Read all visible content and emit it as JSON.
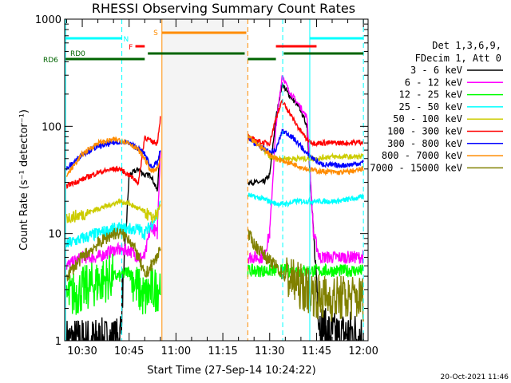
{
  "chart_data": {
    "type": "line",
    "title": "RHESSI Observing Summary Count Rates",
    "xlabel": "Start Time (27-Sep-14 10:24:22)",
    "ylabel": "Count Rate (s⁻¹ detector⁻¹)",
    "yscale": "log",
    "xlim": [
      "10:24:22",
      "12:01:30"
    ],
    "ylim": [
      1,
      1000
    ],
    "x_ticks": [
      "10:30",
      "10:45",
      "11:00",
      "11:15",
      "11:30",
      "11:45",
      "12:00"
    ],
    "y_ticks": [
      "1",
      "10",
      "100",
      "1000"
    ],
    "legend_title": [
      "Det 1,3,6,9,",
      "FDecim 1, Att 0"
    ],
    "legend_position": "right",
    "timestamp": "20-Oct-2021 11:46",
    "flag_labels": {
      "N": "N",
      "F": "F",
      "S": "S",
      "RD0": "RD0",
      "RD6": "RD6"
    },
    "colors": {
      "saa": "#ff8c00",
      "night": "#00ffff",
      "flare": "#ff0000",
      "decim": "#006400"
    },
    "gaps": [
      [
        "10:55:30",
        "11:23:00"
      ]
    ],
    "markers": [
      {
        "time": "10:24:40",
        "color": "#00ffff",
        "style": "solid"
      },
      {
        "time": "10:42:40",
        "color": "#00ffff",
        "style": "dashed"
      },
      {
        "time": "10:55:30",
        "color": "#ff8c00",
        "style": "solid"
      },
      {
        "time": "11:23:00",
        "color": "#ff8c00",
        "style": "dashed"
      },
      {
        "time": "11:34:10",
        "color": "#00ffff",
        "style": "dashed"
      },
      {
        "time": "11:42:50",
        "color": "#00ffff",
        "style": "solid"
      },
      {
        "time": "12:00:00",
        "color": "#00ffff",
        "style": "dashed"
      }
    ],
    "flag_bars": [
      {
        "label": "N",
        "color": "#00ffff",
        "segments": [
          [
            "10:24:40",
            "10:42:40"
          ],
          [
            "11:42:50",
            "12:00:00"
          ]
        ]
      },
      {
        "label": "F",
        "color": "#ff0000",
        "segments": [
          [
            "10:47:00",
            "10:50:00"
          ],
          [
            "11:32:00",
            "11:45:00"
          ]
        ]
      },
      {
        "label": "S",
        "color": "#ff8c00",
        "segments": [
          [
            "10:55:30",
            "11:22:30"
          ]
        ]
      },
      {
        "label": "RD0",
        "color": "#006400",
        "segments": [
          [
            "10:51:00",
            "11:22:00"
          ],
          [
            "11:34:30",
            "12:00:00"
          ]
        ]
      },
      {
        "label": "RD6",
        "color": "#006400",
        "segments": [
          [
            "10:24:40",
            "10:50:00"
          ],
          [
            "11:23:00",
            "11:32:00"
          ]
        ]
      }
    ],
    "series": [
      {
        "name": "3 - 6 keV",
        "color": "#000000",
        "x": [
          "10:25",
          "10:30",
          "10:35",
          "10:40",
          "10:42",
          "10:45",
          "10:48",
          "10:50",
          "10:52",
          "10:54",
          "10:55",
          "11:23",
          "11:25",
          "11:28",
          "11:30",
          "11:32",
          "11:34",
          "11:36",
          "11:38",
          "11:40",
          "11:42",
          "11:44",
          "11:46",
          "11:48",
          "11:52",
          "11:56",
          "12:00"
        ],
        "y": [
          1,
          1,
          1,
          1,
          1,
          35,
          40,
          35,
          35,
          25,
          60,
          30,
          30,
          30,
          35,
          120,
          250,
          200,
          170,
          140,
          100,
          10,
          1.5,
          1.2,
          1.1,
          1.2,
          1.1
        ]
      },
      {
        "name": "6 - 12 keV",
        "color": "#ff00ff",
        "x": [
          "10:25",
          "10:30",
          "10:35",
          "10:40",
          "10:42",
          "10:45",
          "10:48",
          "10:50",
          "10:52",
          "10:54",
          "10:55",
          "11:23",
          "11:25",
          "11:28",
          "11:30",
          "11:32",
          "11:34",
          "11:36",
          "11:38",
          "11:40",
          "11:42",
          "11:44",
          "11:46",
          "11:48",
          "11:52",
          "11:56",
          "12:00"
        ],
        "y": [
          5,
          6,
          6,
          7,
          7,
          7,
          6,
          6,
          12,
          10,
          60,
          6,
          6,
          6,
          10,
          100,
          300,
          220,
          180,
          150,
          120,
          10,
          6,
          6,
          6,
          6,
          6
        ]
      },
      {
        "name": "12 - 25 keV",
        "color": "#00ff00",
        "x": [
          "10:25",
          "10:30",
          "10:35",
          "10:40",
          "10:42",
          "10:45",
          "10:48",
          "10:50",
          "10:52",
          "10:54",
          "10:55",
          "11:23",
          "11:25",
          "11:28",
          "11:30",
          "11:32",
          "11:34",
          "11:36",
          "11:38",
          "11:40",
          "11:42",
          "11:44",
          "11:46",
          "11:48",
          "11:52",
          "11:56",
          "12:00"
        ],
        "y": [
          2.5,
          3,
          3.5,
          4,
          4,
          4.5,
          3,
          2.5,
          3,
          3,
          3.5,
          4.5,
          4.5,
          4.5,
          4.5,
          4.5,
          4.5,
          4.5,
          4.5,
          4.5,
          4.5,
          4.5,
          4.5,
          4.5,
          4.5,
          4.5,
          4.5
        ]
      },
      {
        "name": "25 - 50 keV",
        "color": "#00ffff",
        "x": [
          "10:25",
          "10:30",
          "10:35",
          "10:40",
          "10:42",
          "10:45",
          "10:48",
          "10:50",
          "10:52",
          "10:54",
          "10:55",
          "11:23",
          "11:25",
          "11:28",
          "11:30",
          "11:32",
          "11:34",
          "11:36",
          "11:38",
          "11:40",
          "11:42",
          "11:44",
          "11:46",
          "11:48",
          "11:52",
          "11:56",
          "12:00"
        ],
        "y": [
          8,
          9,
          10,
          11,
          11,
          11,
          11,
          10,
          12,
          15,
          20,
          23,
          22,
          21,
          20,
          19,
          19,
          19,
          20,
          20,
          20,
          20,
          20,
          20,
          20,
          21,
          22
        ]
      },
      {
        "name": "50 - 100 keV",
        "color": "#cccc00",
        "x": [
          "10:25",
          "10:30",
          "10:35",
          "10:40",
          "10:42",
          "10:45",
          "10:48",
          "10:50",
          "10:52",
          "10:54",
          "10:55",
          "11:23",
          "11:25",
          "11:28",
          "11:30",
          "11:32",
          "11:34",
          "11:36",
          "11:38",
          "11:40",
          "11:42",
          "11:44",
          "11:46",
          "11:48",
          "11:52",
          "11:56",
          "12:00"
        ],
        "y": [
          14,
          15,
          17,
          19,
          20,
          19,
          17,
          16,
          14,
          15,
          18,
          80,
          72,
          60,
          52,
          50,
          50,
          50,
          50,
          50,
          50,
          50,
          50,
          52,
          52,
          52,
          52
        ]
      },
      {
        "name": "100 - 300 keV",
        "color": "#ff0000",
        "x": [
          "10:25",
          "10:30",
          "10:35",
          "10:40",
          "10:42",
          "10:45",
          "10:48",
          "10:50",
          "10:52",
          "10:54",
          "10:55",
          "11:23",
          "11:25",
          "11:28",
          "11:30",
          "11:32",
          "11:34",
          "11:36",
          "11:38",
          "11:40",
          "11:42",
          "11:44",
          "11:46",
          "11:48",
          "11:52",
          "11:56",
          "12:00"
        ],
        "y": [
          28,
          32,
          37,
          40,
          40,
          35,
          30,
          80,
          72,
          70,
          120,
          80,
          75,
          70,
          70,
          120,
          170,
          140,
          110,
          90,
          75,
          70,
          70,
          70,
          70,
          70,
          72
        ]
      },
      {
        "name": "300 - 800 keV",
        "color": "#0000ff",
        "x": [
          "10:25",
          "10:30",
          "10:35",
          "10:40",
          "10:42",
          "10:45",
          "10:48",
          "10:50",
          "10:52",
          "10:54",
          "10:55",
          "11:23",
          "11:25",
          "11:28",
          "11:30",
          "11:32",
          "11:34",
          "11:36",
          "11:38",
          "11:40",
          "11:42",
          "11:44",
          "11:46",
          "11:48",
          "11:52",
          "11:56",
          "12:00"
        ],
        "y": [
          40,
          55,
          65,
          70,
          72,
          70,
          62,
          55,
          42,
          45,
          60,
          80,
          70,
          62,
          57,
          60,
          90,
          85,
          75,
          65,
          55,
          50,
          45,
          44,
          43,
          44,
          46
        ]
      },
      {
        "name": "800 - 7000 keV",
        "color": "#ff8c00",
        "x": [
          "10:25",
          "10:30",
          "10:35",
          "10:40",
          "10:42",
          "10:45",
          "10:48",
          "10:50",
          "10:52",
          "10:54",
          "10:55",
          "11:23",
          "11:25",
          "11:28",
          "11:30",
          "11:32",
          "11:34",
          "11:36",
          "11:38",
          "11:40",
          "11:42",
          "11:44",
          "11:46",
          "11:48",
          "11:52",
          "11:56",
          "12:00"
        ],
        "y": [
          35,
          55,
          70,
          75,
          75,
          70,
          60,
          50,
          38,
          40,
          50,
          80,
          72,
          62,
          55,
          50,
          48,
          46,
          44,
          42,
          40,
          39,
          38,
          38,
          37,
          38,
          40
        ]
      },
      {
        "name": "7000 - 15000 keV",
        "color": "#808000",
        "x": [
          "10:25",
          "10:30",
          "10:35",
          "10:40",
          "10:42",
          "10:45",
          "10:48",
          "10:50",
          "10:52",
          "10:54",
          "10:55",
          "11:23",
          "11:25",
          "11:28",
          "11:30",
          "11:32",
          "11:34",
          "11:36",
          "11:38",
          "11:40",
          "11:42",
          "11:44",
          "11:46",
          "11:48",
          "11:52",
          "11:56",
          "12:00"
        ],
        "y": [
          4,
          6,
          8,
          10,
          10,
          9,
          6,
          4,
          5,
          6,
          8,
          10,
          8,
          6.5,
          5.5,
          5,
          4.2,
          3.8,
          3.5,
          3.2,
          3,
          2.8,
          2.5,
          2.5,
          2.5,
          2.5,
          2.5
        ]
      }
    ]
  }
}
